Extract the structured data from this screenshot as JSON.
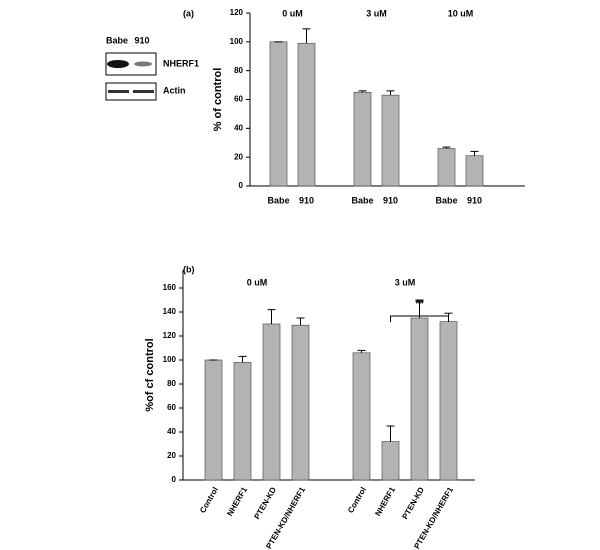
{
  "blot": {
    "lanes": [
      "Babe",
      "910"
    ],
    "rows": [
      "NHERF1",
      "Actin"
    ]
  },
  "chart_data": [
    {
      "type": "bar",
      "panel": "(a)",
      "ylabel": "% of control",
      "group_labels": [
        "0 uM",
        "3 uM",
        "10 uM"
      ],
      "categories": [
        "Babe",
        "910",
        "Babe",
        "910",
        "Babe",
        "910"
      ],
      "values": [
        100,
        99,
        65,
        63,
        26,
        21
      ],
      "errors": [
        0,
        10,
        1,
        3,
        1,
        3
      ],
      "color": "#b3b3b3",
      "ylim": [
        0,
        120
      ],
      "yticks": [
        0,
        20,
        40,
        60,
        80,
        100,
        120
      ]
    },
    {
      "type": "bar",
      "panel": "(b)",
      "ylabel": "%of cf control",
      "group_labels": [
        "0 uM",
        "3 uM"
      ],
      "categories": [
        "Control",
        "NHERF1",
        "PTEN-KD",
        "PTEN-KD/NHERF1",
        "Control",
        "NHERF1",
        "PTEN-KD",
        "PTEN-KD/NHERF1"
      ],
      "values": [
        100,
        98,
        130,
        129,
        106,
        32,
        135,
        132
      ],
      "errors": [
        0,
        5,
        12,
        6,
        2,
        13,
        15,
        7
      ],
      "color": "#b3b3b3",
      "ylim": [
        0,
        175
      ],
      "yticks": [
        0,
        20,
        40,
        60,
        80,
        100,
        120,
        140,
        160
      ],
      "annotation": "**"
    }
  ]
}
